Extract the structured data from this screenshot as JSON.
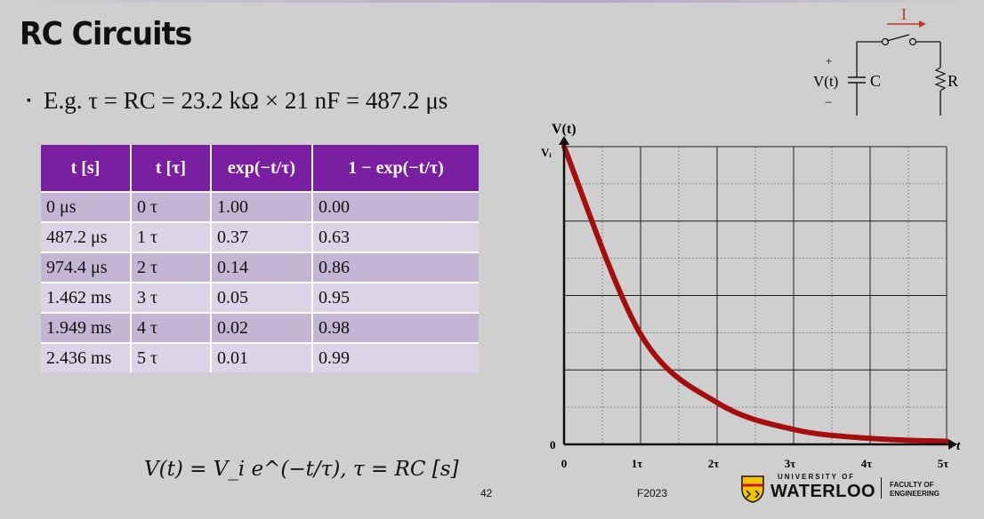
{
  "title": "RC Circuits",
  "example": {
    "bullet": "▪",
    "text": "E.g. τ = RC = 23.2 kΩ × 21 nF = 487.2 μs"
  },
  "table": {
    "headers": [
      "t [s]",
      "t [τ]",
      "exp(−t/τ)",
      "1 − exp(−t/τ)"
    ],
    "rows": [
      [
        "0 μs",
        "0 τ",
        "1.00",
        "0.00"
      ],
      [
        "487.2 μs",
        "1 τ",
        "0.37",
        "0.63"
      ],
      [
        "974.4 μs",
        "2 τ",
        "0.14",
        "0.86"
      ],
      [
        "1.462 ms",
        "3 τ",
        "0.05",
        "0.95"
      ],
      [
        "1.949 ms",
        "4 τ",
        "0.02",
        "0.98"
      ],
      [
        "2.436 ms",
        "5 τ",
        "0.01",
        "0.99"
      ]
    ]
  },
  "formula": "V(t) = V_i e^(−t/τ), τ = RC [s]",
  "circuit": {
    "current_label": "I",
    "plus": "+",
    "minus": "−",
    "voltage_label": "V(t)",
    "capacitor_label": "C",
    "resistor_label": "R",
    "accent_color": "#c0392b"
  },
  "chart_data": {
    "type": "line",
    "ylabel": "V(t)",
    "xlabel": "t",
    "y_top_label": "Vᵢ",
    "y_zero_label": "0",
    "x_tick_labels": [
      "0",
      "1τ",
      "2τ",
      "3τ",
      "4τ",
      "5τ"
    ],
    "xlim": [
      0,
      5
    ],
    "ylim": [
      0,
      1
    ],
    "grid": true,
    "series": [
      {
        "color": "#a50e0e",
        "x": [
          0,
          1,
          2,
          3,
          4,
          5
        ],
        "y": [
          1.0,
          0.37,
          0.14,
          0.05,
          0.02,
          0.01
        ]
      }
    ]
  },
  "footer": {
    "page_number": "42",
    "term": "F2023",
    "logo_university": "UNIVERSITY OF",
    "logo_name": "WATERLOO",
    "logo_faculty_line1": "FACULTY OF",
    "logo_faculty_line2": "ENGINEERING"
  }
}
